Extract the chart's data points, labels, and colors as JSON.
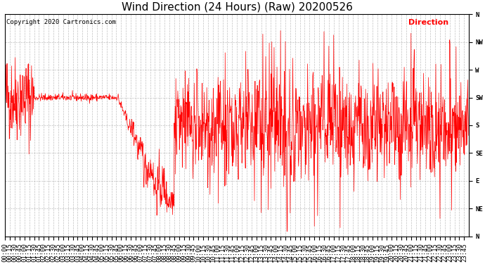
{
  "title": "Wind Direction (24 Hours) (Raw) 20200526",
  "copyright": "Copyright 2020 Cartronics.com",
  "legend_label": "Direction",
  "legend_color": "#ff0000",
  "line_color_red": "#ff0000",
  "line_color_black": "#000000",
  "background_color": "#ffffff",
  "grid_color": "#b0b0b0",
  "ytick_labels": [
    "N",
    "NE",
    "E",
    "SE",
    "S",
    "SW",
    "W",
    "NW",
    "N"
  ],
  "ytick_values": [
    0,
    45,
    90,
    135,
    180,
    225,
    270,
    315,
    360
  ],
  "ylim": [
    0,
    360
  ],
  "total_minutes": 1440,
  "title_fontsize": 11,
  "axis_fontsize": 6.5,
  "copyright_fontsize": 6.5,
  "legend_fontsize": 8
}
